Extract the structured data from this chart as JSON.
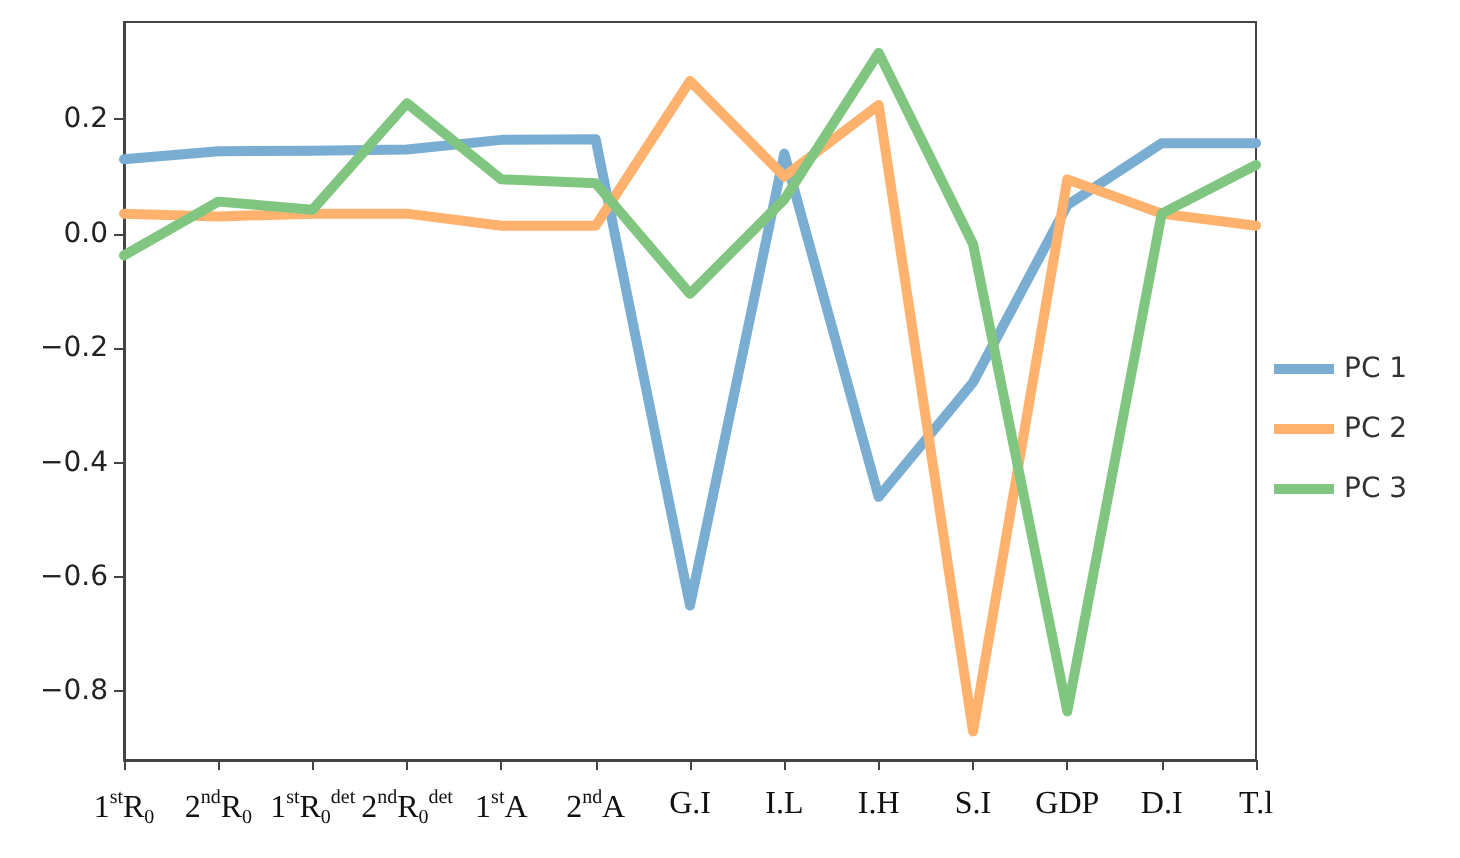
{
  "chart_data": {
    "type": "line",
    "categories": [
      "1$^{st}$R$_{0}$",
      "2$^{nd}$R$_{0}$",
      "1$^{st}$R$_{0}$$^{det}$",
      "2$^{nd}$R$_{0}$$^{det}$",
      "1$^{st}$A",
      "2$^{nd}$A",
      "G.I",
      "I.L",
      "I.H",
      "S.I",
      "GDP",
      "D.I",
      "T.l"
    ],
    "series": [
      {
        "name": "PC 1",
        "color": "#79add2",
        "values": [
          0.13,
          0.144,
          0.145,
          0.147,
          0.164,
          0.165,
          -0.65,
          0.14,
          -0.46,
          -0.26,
          0.05,
          0.158,
          0.158
        ]
      },
      {
        "name": "PC 2",
        "color": "#ffb26e",
        "values": [
          0.035,
          0.03,
          0.035,
          0.035,
          0.014,
          0.014,
          0.267,
          0.1,
          0.225,
          -0.87,
          0.095,
          0.035,
          0.014
        ]
      },
      {
        "name": "PC 3",
        "color": "#80c680",
        "values": [
          -0.038,
          0.056,
          0.042,
          0.228,
          0.095,
          0.088,
          -0.105,
          0.06,
          0.316,
          -0.018,
          -0.835,
          0.035,
          0.12
        ]
      }
    ],
    "ylim": [
      -0.92,
      0.37
    ],
    "yticks": [
      {
        "value": -0.8,
        "label": "−0.8"
      },
      {
        "value": -0.6,
        "label": "−0.6"
      },
      {
        "value": -0.4,
        "label": "−0.4"
      },
      {
        "value": -0.2,
        "label": "−0.2"
      },
      {
        "value": 0,
        "label": "0.0"
      },
      {
        "value": 0.2,
        "label": "0.2"
      }
    ],
    "grid": false,
    "legend": "right",
    "marker": "none",
    "line_style": "solid"
  }
}
